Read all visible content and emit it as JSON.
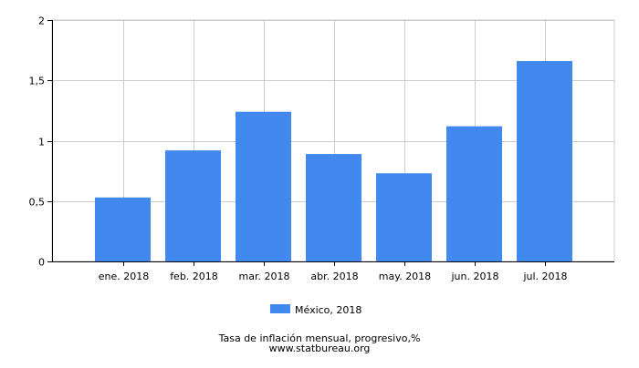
{
  "chart_data": {
    "type": "bar",
    "categories": [
      "ene. 2018",
      "feb. 2018",
      "mar. 2018",
      "abr. 2018",
      "may. 2018",
      "jun. 2018",
      "jul. 2018"
    ],
    "series": [
      {
        "name": "México, 2018",
        "values": [
          0.53,
          0.92,
          1.24,
          0.89,
          0.73,
          1.12,
          1.66
        ],
        "color": "#4189ee"
      }
    ],
    "ylim": [
      0,
      2
    ],
    "yticks": [
      0,
      0.5,
      1,
      1.5,
      2
    ],
    "ytick_labels": [
      "0",
      "0,5",
      "1",
      "1,5",
      "2"
    ],
    "grid": true,
    "legend_position": "bottom",
    "title": "Tasa de inflación mensual, progresivo,%",
    "source": "www.statbureau.org"
  }
}
